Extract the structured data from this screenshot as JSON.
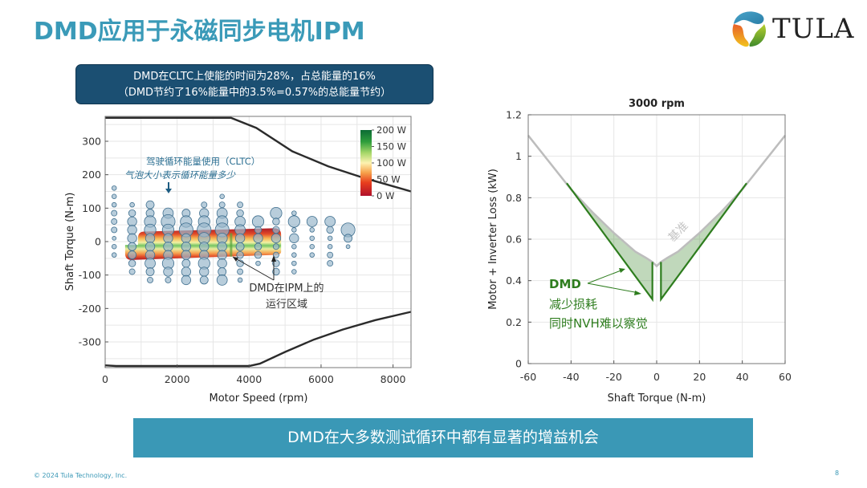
{
  "slide": {
    "title": "DMD应用于永磁同步电机IPM",
    "logo_text": "TULA",
    "callout_line1": "DMD在CLTC上使能的时间为28%，占总能量的16%",
    "callout_line2": "（DMD节约了16%能量中的3.5%=0.57%的总能量节约）",
    "banner": "DMD在大多数测试循环中都有显著的增益机会",
    "footer_copyright": "© 2024 Tula Technology, Inc.",
    "page_number": "8",
    "colors": {
      "title": "#3a9ab8",
      "callout_bg": "#1b4f72",
      "banner_bg": "#3a98b6",
      "dmd_green": "#2e7d1e",
      "baseline_gray": "#bdbdbd"
    }
  },
  "chart_data": [
    {
      "type": "scatter",
      "xlabel": "Motor Speed (rpm)",
      "ylabel": "Shaft Torque (N-m)",
      "xlim": [
        0,
        8500
      ],
      "ylim": [
        -375,
        375
      ],
      "xticks": [
        0,
        2000,
        4000,
        6000,
        8000
      ],
      "yticks": [
        300,
        200,
        100,
        0,
        -100,
        -200,
        -300
      ],
      "grid": true,
      "annotation_cycle_line1": "驾驶循环能量使用（CLTC）",
      "annotation_cycle_line2": "气泡大小表示循环能量多少",
      "annotation_dmd_line1": "DMD在IPM上的",
      "annotation_dmd_line2": "运行区域",
      "colorbar": {
        "ticks": [
          "200 W",
          "150 W",
          "100 W",
          "50 W",
          "0 W"
        ],
        "range": [
          0,
          200
        ],
        "colors": [
          "#b0102a",
          "#e83e1e",
          "#f6a04a",
          "#fdf2b0",
          "#a8d86a",
          "#2f9e3c",
          "#0b6b34"
        ]
      },
      "torque_envelope_upper": [
        [
          0,
          370
        ],
        [
          3500,
          370
        ],
        [
          4200,
          340
        ],
        [
          5200,
          270
        ],
        [
          6200,
          225
        ],
        [
          7200,
          190
        ],
        [
          8500,
          150
        ]
      ],
      "torque_envelope_lower": [
        [
          0,
          -370
        ],
        [
          300,
          -372
        ],
        [
          4000,
          -372
        ],
        [
          4300,
          -365
        ],
        [
          5000,
          -330
        ],
        [
          5800,
          -293
        ],
        [
          6600,
          -263
        ],
        [
          7500,
          -235
        ],
        [
          8500,
          -210
        ]
      ],
      "dmd_region": {
        "x": [
          600,
          4800
        ],
        "y_top": [
          30,
          40
        ],
        "y_bottom": [
          -50,
          -40
        ]
      },
      "bubbles": [
        {
          "x": 250,
          "y": 160,
          "s": 1
        },
        {
          "x": 250,
          "y": 135,
          "s": 1
        },
        {
          "x": 250,
          "y": 110,
          "s": 1
        },
        {
          "x": 250,
          "y": 85,
          "s": 1.5
        },
        {
          "x": 250,
          "y": 60,
          "s": 1.5
        },
        {
          "x": 250,
          "y": 35,
          "s": 1.5
        },
        {
          "x": 250,
          "y": 10,
          "s": 0.7
        },
        {
          "x": 250,
          "y": -15,
          "s": 1
        },
        {
          "x": 250,
          "y": -40,
          "s": 1
        },
        {
          "x": 750,
          "y": 110,
          "s": 1
        },
        {
          "x": 750,
          "y": 85,
          "s": 2
        },
        {
          "x": 750,
          "y": 60,
          "s": 3
        },
        {
          "x": 750,
          "y": 35,
          "s": 3
        },
        {
          "x": 750,
          "y": 10,
          "s": 3
        },
        {
          "x": 750,
          "y": -15,
          "s": 2.5
        },
        {
          "x": 750,
          "y": -40,
          "s": 2.5
        },
        {
          "x": 750,
          "y": -65,
          "s": 2
        },
        {
          "x": 750,
          "y": -90,
          "s": 1.5
        },
        {
          "x": 1250,
          "y": 110,
          "s": 2.5
        },
        {
          "x": 1250,
          "y": 85,
          "s": 2.5
        },
        {
          "x": 1250,
          "y": 60,
          "s": 4
        },
        {
          "x": 1250,
          "y": 35,
          "s": 4
        },
        {
          "x": 1250,
          "y": 10,
          "s": 3
        },
        {
          "x": 1250,
          "y": -15,
          "s": 3
        },
        {
          "x": 1250,
          "y": -40,
          "s": 3
        },
        {
          "x": 1250,
          "y": -65,
          "s": 3.5
        },
        {
          "x": 1250,
          "y": -90,
          "s": 2.5
        },
        {
          "x": 1250,
          "y": -115,
          "s": 1.5
        },
        {
          "x": 1750,
          "y": 85,
          "s": 3.5
        },
        {
          "x": 1750,
          "y": 60,
          "s": 5
        },
        {
          "x": 1750,
          "y": 35,
          "s": 4
        },
        {
          "x": 1750,
          "y": 10,
          "s": 3
        },
        {
          "x": 1750,
          "y": -15,
          "s": 3
        },
        {
          "x": 1750,
          "y": -40,
          "s": 3
        },
        {
          "x": 1750,
          "y": -65,
          "s": 4
        },
        {
          "x": 1750,
          "y": -90,
          "s": 3
        },
        {
          "x": 1750,
          "y": -115,
          "s": 1.5
        },
        {
          "x": 2250,
          "y": 85,
          "s": 2.5
        },
        {
          "x": 2250,
          "y": 60,
          "s": 4
        },
        {
          "x": 2250,
          "y": 35,
          "s": 5
        },
        {
          "x": 2250,
          "y": 10,
          "s": 3
        },
        {
          "x": 2250,
          "y": -15,
          "s": 3
        },
        {
          "x": 2250,
          "y": -40,
          "s": 3
        },
        {
          "x": 2250,
          "y": -65,
          "s": 2.5
        },
        {
          "x": 2250,
          "y": -90,
          "s": 3
        },
        {
          "x": 2250,
          "y": -115,
          "s": 3
        },
        {
          "x": 2750,
          "y": 110,
          "s": 1.5
        },
        {
          "x": 2750,
          "y": 85,
          "s": 3
        },
        {
          "x": 2750,
          "y": 60,
          "s": 4
        },
        {
          "x": 2750,
          "y": 35,
          "s": 5
        },
        {
          "x": 2750,
          "y": 10,
          "s": 4
        },
        {
          "x": 2750,
          "y": -15,
          "s": 3
        },
        {
          "x": 2750,
          "y": -40,
          "s": 3
        },
        {
          "x": 2750,
          "y": -65,
          "s": 4
        },
        {
          "x": 2750,
          "y": -90,
          "s": 3
        },
        {
          "x": 2750,
          "y": -115,
          "s": 2.5
        },
        {
          "x": 3250,
          "y": 135,
          "s": 1
        },
        {
          "x": 3250,
          "y": 110,
          "s": 1.5
        },
        {
          "x": 3250,
          "y": 85,
          "s": 3.5
        },
        {
          "x": 3250,
          "y": 60,
          "s": 4
        },
        {
          "x": 3250,
          "y": 35,
          "s": 5
        },
        {
          "x": 3250,
          "y": 10,
          "s": 3.5
        },
        {
          "x": 3250,
          "y": -15,
          "s": 3
        },
        {
          "x": 3250,
          "y": -40,
          "s": 3
        },
        {
          "x": 3250,
          "y": -65,
          "s": 3
        },
        {
          "x": 3250,
          "y": -90,
          "s": 2.5
        },
        {
          "x": 3250,
          "y": -115,
          "s": 3.5
        },
        {
          "x": 3750,
          "y": 110,
          "s": 1.5
        },
        {
          "x": 3750,
          "y": 85,
          "s": 2
        },
        {
          "x": 3750,
          "y": 60,
          "s": 3.5
        },
        {
          "x": 3750,
          "y": 35,
          "s": 3.5
        },
        {
          "x": 3750,
          "y": 10,
          "s": 3
        },
        {
          "x": 3750,
          "y": -15,
          "s": 2.5
        },
        {
          "x": 3750,
          "y": -40,
          "s": 2
        },
        {
          "x": 3750,
          "y": -65,
          "s": 2
        },
        {
          "x": 3750,
          "y": -90,
          "s": 1.5
        },
        {
          "x": 3750,
          "y": -115,
          "s": 1
        },
        {
          "x": 4250,
          "y": 60,
          "s": 4
        },
        {
          "x": 4250,
          "y": 35,
          "s": 2
        },
        {
          "x": 4250,
          "y": 10,
          "s": 3
        },
        {
          "x": 4250,
          "y": -15,
          "s": 2
        },
        {
          "x": 4250,
          "y": -40,
          "s": 2
        },
        {
          "x": 4250,
          "y": -65,
          "s": 1
        },
        {
          "x": 4750,
          "y": 85,
          "s": 4
        },
        {
          "x": 4750,
          "y": 60,
          "s": 2
        },
        {
          "x": 4750,
          "y": 35,
          "s": 2
        },
        {
          "x": 4750,
          "y": 10,
          "s": 3
        },
        {
          "x": 4750,
          "y": -15,
          "s": 1.5
        },
        {
          "x": 4750,
          "y": -40,
          "s": 1.5
        },
        {
          "x": 4750,
          "y": -65,
          "s": 2
        },
        {
          "x": 4750,
          "y": -90,
          "s": 2
        },
        {
          "x": 5250,
          "y": 85,
          "s": 1
        },
        {
          "x": 5250,
          "y": 60,
          "s": 4
        },
        {
          "x": 5250,
          "y": 35,
          "s": 1
        },
        {
          "x": 5250,
          "y": 10,
          "s": 3
        },
        {
          "x": 5250,
          "y": -15,
          "s": 1
        },
        {
          "x": 5250,
          "y": -40,
          "s": 1
        },
        {
          "x": 5250,
          "y": -65,
          "s": 1
        },
        {
          "x": 5250,
          "y": -90,
          "s": 1
        },
        {
          "x": 5750,
          "y": 60,
          "s": 3.5
        },
        {
          "x": 5750,
          "y": 35,
          "s": 1
        },
        {
          "x": 5750,
          "y": 10,
          "s": 1
        },
        {
          "x": 5750,
          "y": -15,
          "s": 1
        },
        {
          "x": 5750,
          "y": -40,
          "s": 1
        },
        {
          "x": 6250,
          "y": 60,
          "s": 3.5
        },
        {
          "x": 6250,
          "y": 35,
          "s": 2
        },
        {
          "x": 6250,
          "y": 10,
          "s": 1
        },
        {
          "x": 6250,
          "y": -15,
          "s": 1
        },
        {
          "x": 6250,
          "y": -40,
          "s": 1.5
        },
        {
          "x": 6250,
          "y": -65,
          "s": 1.5
        },
        {
          "x": 6750,
          "y": 35,
          "s": 5
        },
        {
          "x": 6750,
          "y": 10,
          "s": 2.5
        },
        {
          "x": 6750,
          "y": -15,
          "s": 0.7
        }
      ]
    },
    {
      "type": "area",
      "title": "3000 rpm",
      "xlabel": "Shaft Torque (N-m)",
      "ylabel": "Motor + Inverter Loss (kW)",
      "xlim": [
        -60,
        60
      ],
      "ylim": [
        0,
        1.2
      ],
      "xticks": [
        -60,
        -40,
        -20,
        0,
        20,
        40,
        60
      ],
      "yticks": [
        0,
        0.2,
        0.4,
        0.6,
        0.8,
        1,
        1.2
      ],
      "ytick_labels": [
        "0",
        "0.2",
        "0.4",
        "0.6",
        "0.8",
        "1",
        "1.2"
      ],
      "grid": true,
      "series": [
        {
          "name": "基准",
          "color": "#bdbdbd",
          "x": [
            -60,
            -50,
            -40,
            -30,
            -20,
            -10,
            -5,
            -2,
            0,
            2,
            5,
            10,
            20,
            30,
            40,
            50,
            60
          ],
          "y": [
            1.1,
            0.97,
            0.84,
            0.73,
            0.63,
            0.54,
            0.51,
            0.49,
            0.47,
            0.49,
            0.51,
            0.54,
            0.63,
            0.73,
            0.84,
            0.97,
            1.1
          ]
        },
        {
          "name": "DMD",
          "color": "#2e7d1e",
          "x": [
            -42,
            -2,
            -2,
            2,
            2,
            42
          ],
          "y": [
            0.87,
            0.31,
            0.49,
            0.49,
            0.31,
            0.87
          ]
        }
      ],
      "annotation_baseline": "基准",
      "annotation_dmd_line1": "DMD",
      "annotation_dmd_line2": "减少损耗",
      "annotation_dmd_line3": "同时NVH难以察觉"
    }
  ]
}
